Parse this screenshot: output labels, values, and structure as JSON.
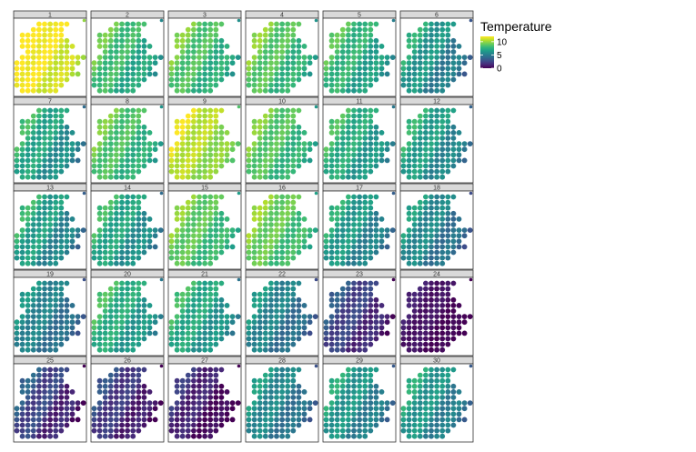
{
  "chart_data": {
    "type": "scatter",
    "description_kind": "faceted spatial dot map",
    "panels": [
      {
        "label": "1",
        "mean": 11.6,
        "gradient": 1.6
      },
      {
        "label": "2",
        "mean": 7.8,
        "gradient": 2.2
      },
      {
        "label": "3",
        "mean": 8.2,
        "gradient": 2.2
      },
      {
        "label": "4",
        "mean": 8.4,
        "gradient": 2.2
      },
      {
        "label": "5",
        "mean": 7.4,
        "gradient": 2.2
      },
      {
        "label": "6",
        "mean": 5.8,
        "gradient": 2.6
      },
      {
        "label": "7",
        "mean": 6.6,
        "gradient": 2.4
      },
      {
        "label": "8",
        "mean": 8.2,
        "gradient": 2.0
      },
      {
        "label": "9",
        "mean": 10.4,
        "gradient": 1.8
      },
      {
        "label": "10",
        "mean": 8.4,
        "gradient": 2.0
      },
      {
        "label": "11",
        "mean": 7.0,
        "gradient": 2.2
      },
      {
        "label": "12",
        "mean": 6.2,
        "gradient": 2.4
      },
      {
        "label": "13",
        "mean": 6.2,
        "gradient": 2.6
      },
      {
        "label": "14",
        "mean": 6.6,
        "gradient": 2.4
      },
      {
        "label": "15",
        "mean": 8.6,
        "gradient": 2.0
      },
      {
        "label": "16",
        "mean": 8.8,
        "gradient": 2.0
      },
      {
        "label": "17",
        "mean": 6.0,
        "gradient": 2.4
      },
      {
        "label": "18",
        "mean": 5.2,
        "gradient": 2.4
      },
      {
        "label": "19",
        "mean": 5.0,
        "gradient": 2.0
      },
      {
        "label": "20",
        "mean": 7.0,
        "gradient": 2.2
      },
      {
        "label": "21",
        "mean": 6.8,
        "gradient": 2.2
      },
      {
        "label": "22",
        "mean": 5.0,
        "gradient": 2.2
      },
      {
        "label": "23",
        "mean": 2.0,
        "gradient": 2.2
      },
      {
        "label": "24",
        "mean": 0.4,
        "gradient": 1.0
      },
      {
        "label": "25",
        "mean": 2.0,
        "gradient": 2.6
      },
      {
        "label": "26",
        "mean": 1.6,
        "gradient": 2.2
      },
      {
        "label": "27",
        "mean": 0.8,
        "gradient": 2.0
      },
      {
        "label": "28",
        "mean": 5.2,
        "gradient": 2.2
      },
      {
        "label": "29",
        "mean": 5.8,
        "gradient": 2.4
      },
      {
        "label": "30",
        "mean": 5.8,
        "gradient": 2.4
      }
    ],
    "grid_rows": [
      [
        4,
        9
      ],
      [
        3,
        8
      ],
      [
        1,
        8
      ],
      [
        1,
        9
      ],
      [
        1,
        10
      ],
      [
        2,
        9
      ],
      [
        1,
        12
      ],
      [
        0,
        11
      ],
      [
        0,
        10
      ],
      [
        0,
        11
      ],
      [
        0,
        9
      ],
      [
        0,
        8
      ],
      [
        1,
        7
      ]
    ],
    "legend": {
      "title": "Temperature",
      "ticks": [
        10,
        5,
        0
      ],
      "range": [
        0,
        12
      ]
    },
    "colorscale": [
      "#440154",
      "#482878",
      "#3e4989",
      "#31688e",
      "#26828e",
      "#1f9e89",
      "#35b779",
      "#6ece58",
      "#b5de2b",
      "#fde725"
    ]
  }
}
